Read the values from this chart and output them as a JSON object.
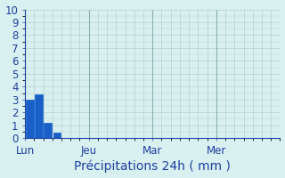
{
  "title": "",
  "xlabel": "Précipitations 24h ( mm )",
  "ylabel": "",
  "ylim": [
    0,
    10
  ],
  "yticks": [
    0,
    1,
    2,
    3,
    4,
    5,
    6,
    7,
    8,
    9,
    10
  ],
  "bar_values": [
    3.0,
    3.4,
    1.2,
    0.4
  ],
  "bar_positions": [
    0.5,
    1.5,
    2.5,
    3.5
  ],
  "bar_width": 0.85,
  "bar_color": "#1a5fc8",
  "bar_edge_color": "#1060cc",
  "background_color": "#d8f0f0",
  "grid_color": "#b0c4c4",
  "axis_color": "#2040a0",
  "tick_label_color": "#2040a0",
  "xlabel_color": "#2040a0",
  "xtick_positions": [
    0,
    7,
    14,
    21
  ],
  "xtick_labels": [
    "Lun",
    "Jeu",
    "Mar",
    "Mer"
  ],
  "xlim": [
    0,
    28
  ],
  "xlabel_fontsize": 10,
  "tick_fontsize": 8.5,
  "major_grid_color": "#8ab0b0",
  "minor_grid_color": "#b8d0d0"
}
